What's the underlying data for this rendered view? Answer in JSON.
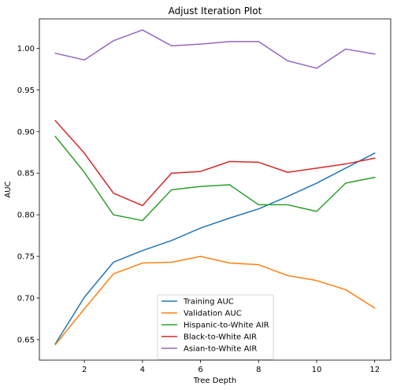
{
  "chart_data": {
    "type": "line",
    "title": "Adjust Iteration Plot",
    "xlabel": "Tree Depth",
    "ylabel": "AUC",
    "x": [
      1,
      2,
      3,
      4,
      5,
      6,
      7,
      8,
      9,
      10,
      11,
      12
    ],
    "xlim": [
      0.45,
      12.55
    ],
    "ylim": [
      0.6254,
      1.0353
    ],
    "xticks": [
      2,
      4,
      6,
      8,
      10,
      12
    ],
    "yticks": [
      0.65,
      0.7,
      0.75,
      0.8,
      0.85,
      0.9,
      0.95,
      1.0
    ],
    "ytick_labels": [
      "0.65",
      "0.70",
      "0.75",
      "0.80",
      "0.85",
      "0.90",
      "0.95",
      "1.00"
    ],
    "grid": false,
    "legend_position": "bottom-center",
    "series": [
      {
        "name": "Training AUC",
        "color": "#1f77b4",
        "values": [
          0.645,
          0.701,
          0.743,
          0.757,
          0.769,
          0.784,
          0.796,
          0.807,
          0.822,
          0.838,
          0.856,
          0.874
        ]
      },
      {
        "name": "Validation AUC",
        "color": "#ff7f0e",
        "values": [
          0.644,
          0.687,
          0.729,
          0.742,
          0.743,
          0.75,
          0.742,
          0.74,
          0.727,
          0.721,
          0.71,
          0.688
        ]
      },
      {
        "name": "Hispanic-to-White AIR",
        "color": "#2ca02c",
        "values": [
          0.894,
          0.851,
          0.8,
          0.793,
          0.83,
          0.834,
          0.836,
          0.812,
          0.812,
          0.804,
          0.838,
          0.845
        ]
      },
      {
        "name": "Black-to-White AIR",
        "color": "#d62728",
        "values": [
          0.913,
          0.874,
          0.826,
          0.811,
          0.85,
          0.852,
          0.864,
          0.863,
          0.851,
          0.856,
          0.861,
          0.868
        ]
      },
      {
        "name": "Asian-to-White AIR",
        "color": "#9467bd",
        "values": [
          0.994,
          0.986,
          1.009,
          1.022,
          1.003,
          1.005,
          1.008,
          1.008,
          0.985,
          0.976,
          0.999,
          0.993
        ]
      }
    ]
  }
}
